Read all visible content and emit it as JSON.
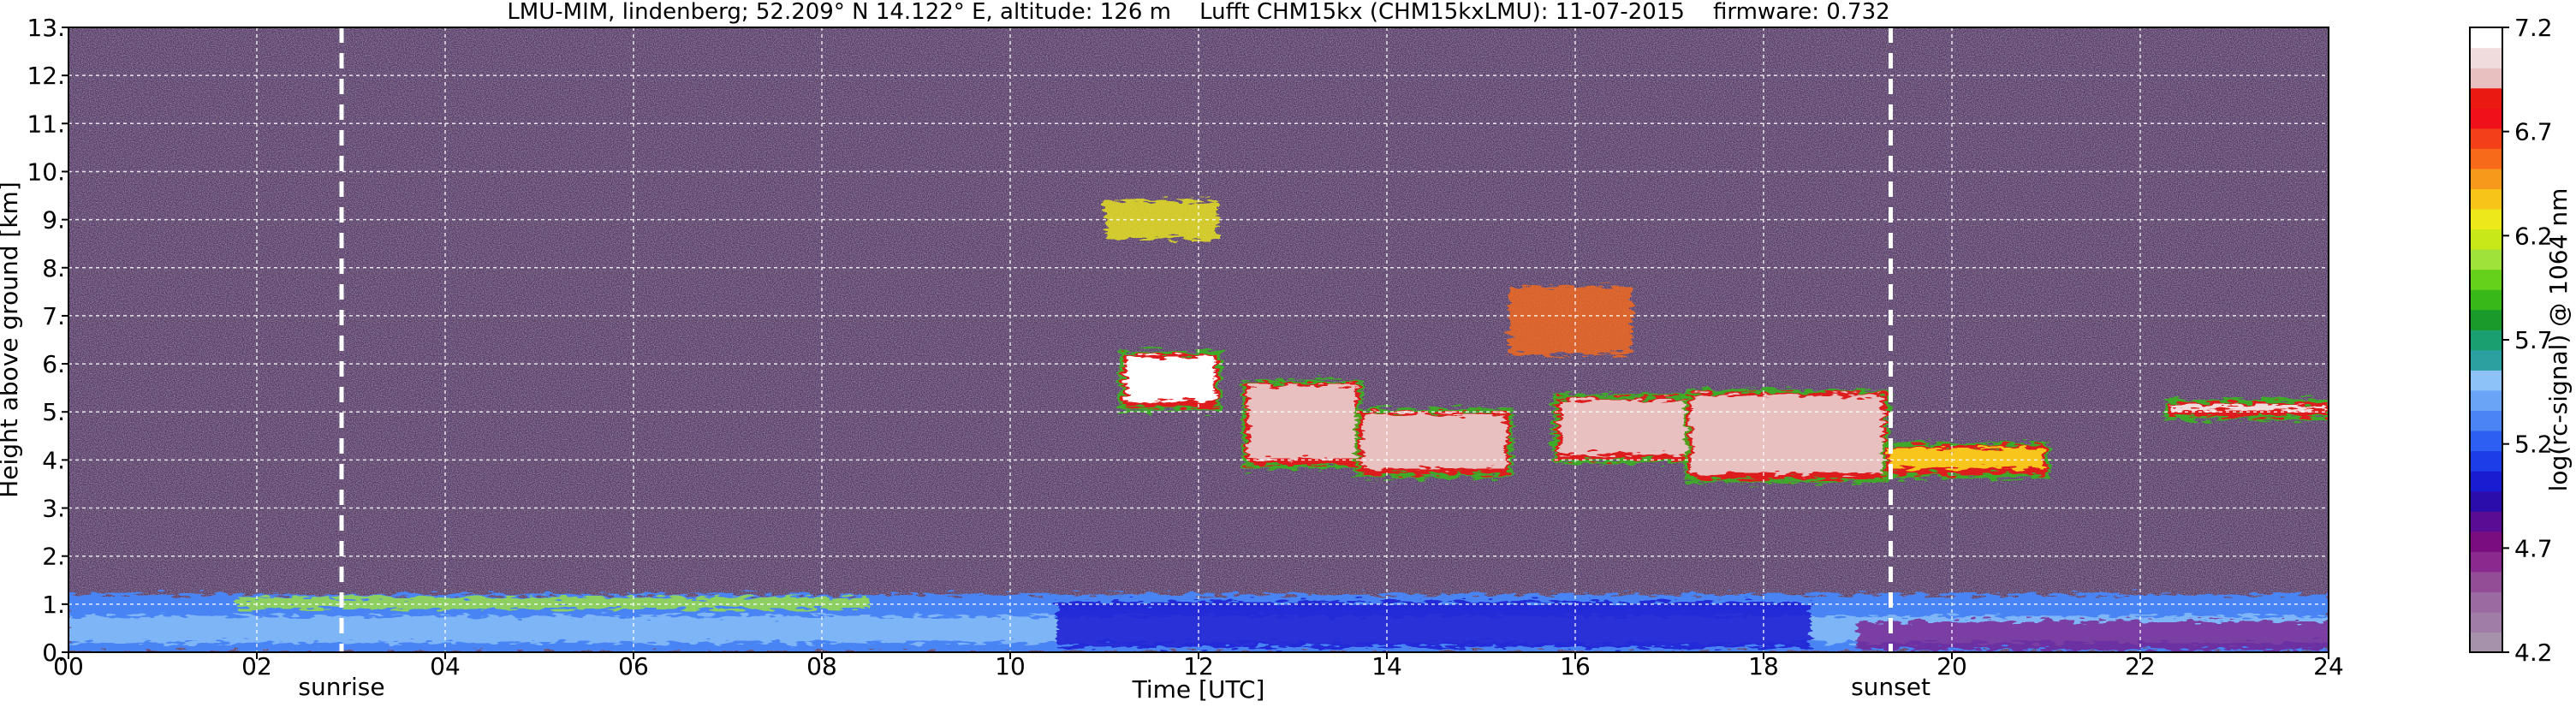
{
  "chart_data": {
    "type": "heatmap",
    "title": "LMU-MIM, lindenberg; 52.209° N 14.122° E, altitude: 126 m    Lufft CHM15kx (CHM15kxLMU): 11-07-2015    firmware: 0.732",
    "xlabel": "Time [UTC]",
    "ylabel": "Height above ground [km]",
    "xlim": [
      0,
      24
    ],
    "ylim": [
      0,
      13
    ],
    "x_ticks": [
      "00",
      "02",
      "04",
      "06",
      "08",
      "10",
      "12",
      "14",
      "16",
      "18",
      "20",
      "22",
      "24"
    ],
    "y_ticks": [
      "0.",
      "1.",
      "2.",
      "3.",
      "4.",
      "5.",
      "6.",
      "7.",
      "8.",
      "9.",
      "10.",
      "11.",
      "12.",
      "13."
    ],
    "grid": true,
    "annotations": [
      {
        "label": "sunrise",
        "time": 2.9
      },
      {
        "label": "sunset",
        "time": 19.35
      }
    ],
    "colorbar": {
      "label": "log(rc-signal) @ 1064 nm",
      "min": 4.2,
      "max": 7.2,
      "ticks": [
        "4.2",
        "4.7",
        "5.2",
        "5.7",
        "6.2",
        "6.7",
        "7.2"
      ],
      "colors": [
        "#a792ac",
        "#a07da6",
        "#9a6aa0",
        "#934d97",
        "#8a2a8e",
        "#7a0e80",
        "#5a0c94",
        "#2a0dab",
        "#1a1cd2",
        "#1d3de8",
        "#2d5ff2",
        "#4a84f5",
        "#6aa4f7",
        "#8cc2f7",
        "#2aa0a0",
        "#1aa070",
        "#1a9a2a",
        "#39b81a",
        "#66d11a",
        "#9ee23a",
        "#c8e81a",
        "#ece81a",
        "#f7c51a",
        "#f7991a",
        "#f76a1a",
        "#f3401a",
        "#ef101a",
        "#ea1a12",
        "#e9c0c0",
        "#f0dcdc",
        "#ffffff"
      ]
    },
    "layers": [
      {
        "name": "boundary-layer-aerosol",
        "t_start": 0,
        "t_end": 24,
        "h_bottom": 0,
        "h_top": 1.2,
        "signal": 5.5
      },
      {
        "name": "morning-residual-layer",
        "t_start": 1.8,
        "t_end": 8.5,
        "h_bottom": 0.9,
        "h_top": 1.15,
        "signal": 6.1
      },
      {
        "name": "cloud-0",
        "t_start": 11.2,
        "t_end": 12.2,
        "h_bottom": 5.1,
        "h_top": 6.2,
        "signal": 7.2
      },
      {
        "name": "cloud-1",
        "t_start": 12.5,
        "t_end": 13.7,
        "h_bottom": 3.9,
        "h_top": 5.6,
        "signal": 7.0
      },
      {
        "name": "cloud-2",
        "t_start": 13.7,
        "t_end": 15.3,
        "h_bottom": 3.7,
        "h_top": 5.0,
        "signal": 7.0
      },
      {
        "name": "cloud-3",
        "t_start": 15.8,
        "t_end": 17.2,
        "h_bottom": 4.0,
        "h_top": 5.3,
        "signal": 7.0
      },
      {
        "name": "cloud-4",
        "t_start": 17.2,
        "t_end": 19.3,
        "h_bottom": 3.6,
        "h_top": 5.4,
        "signal": 7.0
      },
      {
        "name": "cloud-5",
        "t_start": 19.3,
        "t_end": 21.0,
        "h_bottom": 3.7,
        "h_top": 4.3,
        "signal": 6.4
      },
      {
        "name": "cloud-6",
        "t_start": 22.3,
        "t_end": 24,
        "h_bottom": 4.9,
        "h_top": 5.2,
        "signal": 7.1
      },
      {
        "name": "cirrus-0",
        "t_start": 11.0,
        "t_end": 12.2,
        "h_bottom": 8.6,
        "h_top": 9.4,
        "signal": 6.3
      },
      {
        "name": "cirrus-1",
        "t_start": 15.3,
        "t_end": 16.6,
        "h_bottom": 6.2,
        "h_top": 7.6,
        "signal": 6.6
      }
    ]
  }
}
